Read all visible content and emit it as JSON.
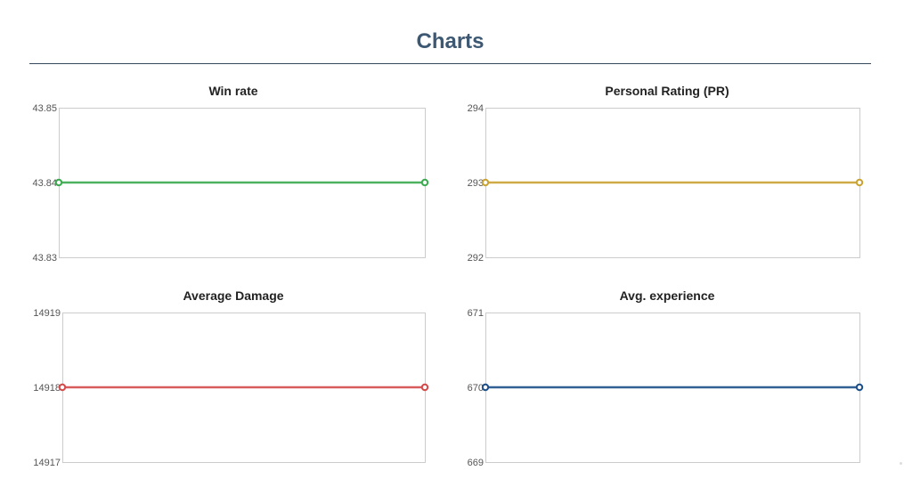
{
  "page": {
    "title": "Charts"
  },
  "chart_data": [
    {
      "type": "line",
      "title": "Win rate",
      "color": "#3aaa4f",
      "x": [
        0,
        1
      ],
      "series": [
        {
          "values": [
            43.84,
            43.84
          ]
        }
      ],
      "ylim": [
        43.83,
        43.85
      ],
      "yticks": [
        "43.85",
        "43.84",
        "43.83"
      ],
      "grid": false
    },
    {
      "type": "line",
      "title": "Personal Rating (PR)",
      "color": "#c9a232",
      "x": [
        0,
        1
      ],
      "series": [
        {
          "values": [
            293,
            293
          ]
        }
      ],
      "ylim": [
        292,
        294
      ],
      "yticks": [
        "294",
        "293",
        "292"
      ],
      "grid": false
    },
    {
      "type": "line",
      "title": "Average Damage",
      "color": "#d44a4a",
      "x": [
        0,
        1
      ],
      "series": [
        {
          "values": [
            14918,
            14918
          ]
        }
      ],
      "ylim": [
        14917,
        14919
      ],
      "yticks": [
        "14919",
        "14918",
        "14917"
      ],
      "grid": false
    },
    {
      "type": "line",
      "title": "Avg. experience",
      "color": "#1c4f8a",
      "x": [
        0,
        1
      ],
      "series": [
        {
          "values": [
            670,
            670
          ]
        }
      ],
      "ylim": [
        669,
        671
      ],
      "yticks": [
        "671",
        "670",
        "669"
      ],
      "grid": false
    }
  ]
}
